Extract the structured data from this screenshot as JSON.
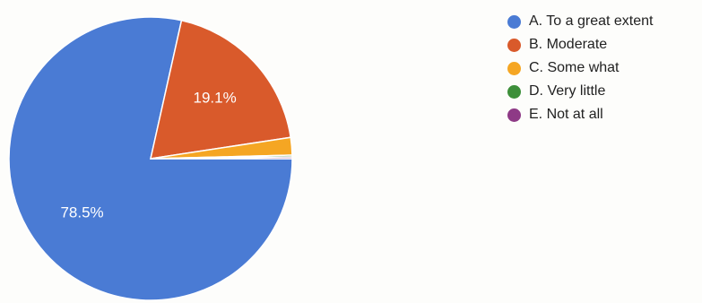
{
  "chart_data": {
    "type": "pie",
    "title": "",
    "categories": [
      "A. To a great extent",
      "B. Moderate",
      "C. Some what",
      "D. Very little",
      "E. Not at all"
    ],
    "values": [
      78.5,
      19.1,
      2.0,
      0.2,
      0.2
    ],
    "data_labels": [
      "78.5%",
      "19.1%",
      "",
      "",
      ""
    ],
    "colors": [
      "#4a7bd4",
      "#d95a2b",
      "#f5a623",
      "#3d8f3a",
      "#8e3a86"
    ],
    "legend_position": "right"
  }
}
